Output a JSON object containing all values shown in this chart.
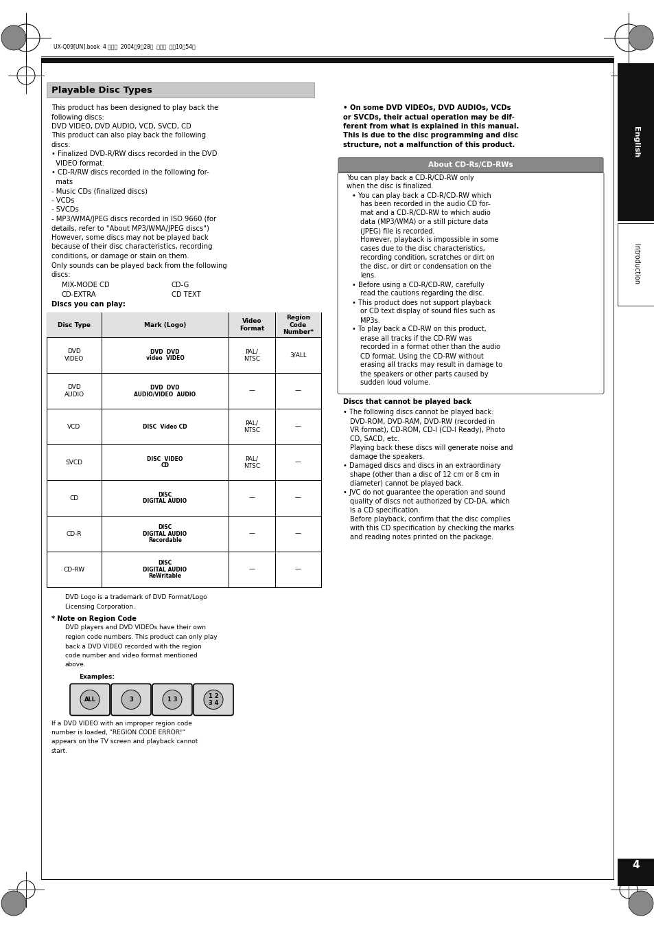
{
  "bg_color": "#ffffff",
  "page_width": 9.54,
  "page_height": 13.51,
  "top_bar_text": "UX-Q09[UN].book  4 ページ  2004年9月28日  火曜日  午前10時54分",
  "black_bar_color": "#111111",
  "section_title": "Playable Disc Types",
  "section_title_bg": "#c8c8c8",
  "sidebar_color": "#111111",
  "sidebar_text_english": "English",
  "sidebar_text_intro": "Introduction",
  "page_number": "4",
  "about_box_title": "About CD-Rs/CD-RWs",
  "about_title_bg": "#888888"
}
